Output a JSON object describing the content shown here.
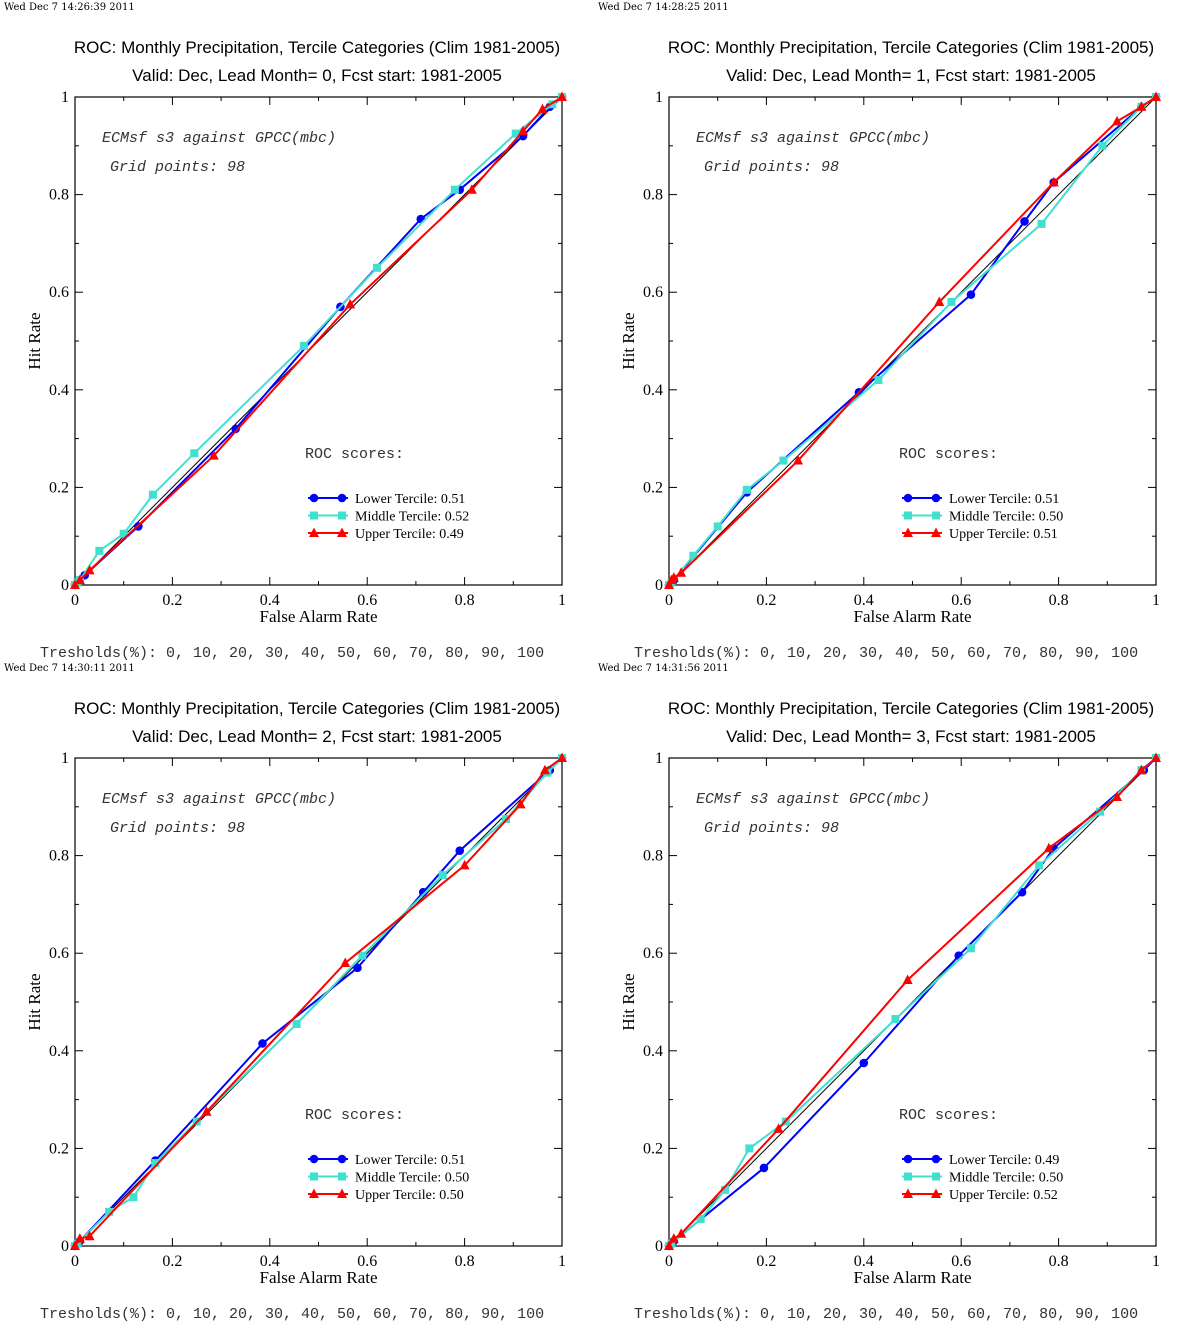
{
  "chart_data": [
    {
      "type": "line",
      "timestamp": "Wed Dec  7 14:26:39 2011",
      "title": "ROC: Monthly Precipitation, Tercile Categories (Clim 1981-2005)",
      "subtitle": "Valid: Dec, Lead Month= 0, Fcst start: 1981-2005",
      "xlabel": "False Alarm Rate",
      "ylabel": "Hit Rate",
      "xlim": [
        0,
        1
      ],
      "ylim": [
        0,
        1
      ],
      "annotation_line1": "ECMsf s3 against GPCC(mbc)",
      "annotation_line2": "Grid points:   98",
      "scores_label": "ROC scores:",
      "thresholds": "Tresholds(%): 0, 10, 20, 30, 40, 50, 60, 70, 80, 90, 100",
      "series": [
        {
          "name": "Lower Tercile: 0.51",
          "color": "#0000ff",
          "marker": "circle",
          "points": [
            [
              0,
              0
            ],
            [
              0.005,
              0.005
            ],
            [
              0.01,
              0.01
            ],
            [
              0.02,
              0.02
            ],
            [
              0.13,
              0.12
            ],
            [
              0.33,
              0.32
            ],
            [
              0.545,
              0.57
            ],
            [
              0.71,
              0.75
            ],
            [
              0.79,
              0.81
            ],
            [
              0.92,
              0.92
            ],
            [
              0.975,
              0.98
            ],
            [
              1,
              1
            ]
          ]
        },
        {
          "name": "Middle Tercile: 0.52",
          "color": "#40e0d0",
          "marker": "square",
          "points": [
            [
              0,
              0
            ],
            [
              0.005,
              0.005
            ],
            [
              0.01,
              0.01
            ],
            [
              0.05,
              0.07
            ],
            [
              0.1,
              0.105
            ],
            [
              0.16,
              0.185
            ],
            [
              0.245,
              0.27
            ],
            [
              0.47,
              0.49
            ],
            [
              0.62,
              0.65
            ],
            [
              0.78,
              0.81
            ],
            [
              0.905,
              0.925
            ],
            [
              0.98,
              0.985
            ],
            [
              1,
              1
            ]
          ]
        },
        {
          "name": "Upper Tercile: 0.49",
          "color": "#ff0000",
          "marker": "triangle",
          "points": [
            [
              0,
              0
            ],
            [
              0.01,
              0.01
            ],
            [
              0.03,
              0.03
            ],
            [
              0.285,
              0.265
            ],
            [
              0.565,
              0.575
            ],
            [
              0.815,
              0.81
            ],
            [
              0.92,
              0.93
            ],
            [
              0.96,
              0.975
            ],
            [
              1,
              1
            ]
          ]
        }
      ]
    },
    {
      "type": "line",
      "timestamp": "Wed Dec  7 14:28:25 2011",
      "title": "ROC: Monthly Precipitation, Tercile Categories (Clim 1981-2005)",
      "subtitle": "Valid: Dec, Lead Month= 1, Fcst start: 1981-2005",
      "xlabel": "False Alarm Rate",
      "ylabel": "Hit Rate",
      "xlim": [
        0,
        1
      ],
      "ylim": [
        0,
        1
      ],
      "annotation_line1": "ECMsf s3 against GPCC(mbc)",
      "annotation_line2": "Grid points:   98",
      "scores_label": "ROC scores:",
      "thresholds": "Tresholds(%): 0, 10, 20, 30, 40, 50, 60, 70, 80, 90, 100",
      "series": [
        {
          "name": "Lower Tercile: 0.51",
          "color": "#0000ff",
          "marker": "circle",
          "points": [
            [
              0,
              0
            ],
            [
              0.005,
              0.005
            ],
            [
              0.01,
              0.01
            ],
            [
              0.16,
              0.19
            ],
            [
              0.39,
              0.395
            ],
            [
              0.62,
              0.595
            ],
            [
              0.73,
              0.745
            ],
            [
              0.79,
              0.825
            ],
            [
              0.97,
              0.98
            ],
            [
              1,
              1
            ]
          ]
        },
        {
          "name": "Middle Tercile: 0.50",
          "color": "#40e0d0",
          "marker": "square",
          "points": [
            [
              0,
              0
            ],
            [
              0.005,
              0.005
            ],
            [
              0.05,
              0.06
            ],
            [
              0.1,
              0.12
            ],
            [
              0.16,
              0.195
            ],
            [
              0.235,
              0.255
            ],
            [
              0.43,
              0.42
            ],
            [
              0.58,
              0.58
            ],
            [
              0.765,
              0.74
            ],
            [
              0.89,
              0.9
            ],
            [
              0.97,
              0.98
            ],
            [
              1,
              1
            ]
          ]
        },
        {
          "name": "Upper Tercile: 0.51",
          "color": "#ff0000",
          "marker": "triangle",
          "points": [
            [
              0,
              0
            ],
            [
              0.005,
              0.01
            ],
            [
              0.01,
              0.015
            ],
            [
              0.025,
              0.025
            ],
            [
              0.265,
              0.255
            ],
            [
              0.555,
              0.58
            ],
            [
              0.79,
              0.825
            ],
            [
              0.92,
              0.95
            ],
            [
              0.97,
              0.98
            ],
            [
              1,
              1
            ]
          ]
        }
      ]
    },
    {
      "type": "line",
      "timestamp": "Wed Dec  7 14:30:11 2011",
      "title": "ROC: Monthly Precipitation, Tercile Categories (Clim 1981-2005)",
      "subtitle": "Valid: Dec, Lead Month= 2, Fcst start: 1981-2005",
      "xlabel": "False Alarm Rate",
      "ylabel": "Hit Rate",
      "xlim": [
        0,
        1
      ],
      "ylim": [
        0,
        1
      ],
      "annotation_line1": "ECMsf s3 against GPCC(mbc)",
      "annotation_line2": "Grid points:   98",
      "scores_label": "ROC scores:",
      "thresholds": "Tresholds(%): 0, 10, 20, 30, 40, 50, 60, 70, 80, 90, 100",
      "series": [
        {
          "name": "Lower Tercile: 0.51",
          "color": "#0000ff",
          "marker": "circle",
          "points": [
            [
              0,
              0
            ],
            [
              0.005,
              0.005
            ],
            [
              0.01,
              0.01
            ],
            [
              0.165,
              0.175
            ],
            [
              0.385,
              0.415
            ],
            [
              0.58,
              0.57
            ],
            [
              0.715,
              0.725
            ],
            [
              0.79,
              0.81
            ],
            [
              0.975,
              0.975
            ],
            [
              1,
              1
            ]
          ]
        },
        {
          "name": "Middle Tercile: 0.50",
          "color": "#40e0d0",
          "marker": "square",
          "points": [
            [
              0,
              0
            ],
            [
              0.005,
              0.005
            ],
            [
              0.07,
              0.07
            ],
            [
              0.12,
              0.1
            ],
            [
              0.165,
              0.17
            ],
            [
              0.25,
              0.255
            ],
            [
              0.455,
              0.455
            ],
            [
              0.59,
              0.595
            ],
            [
              0.755,
              0.76
            ],
            [
              0.885,
              0.875
            ],
            [
              0.97,
              0.97
            ],
            [
              1,
              1
            ]
          ]
        },
        {
          "name": "Upper Tercile: 0.50",
          "color": "#ff0000",
          "marker": "triangle",
          "points": [
            [
              0,
              0
            ],
            [
              0.01,
              0.015
            ],
            [
              0.03,
              0.02
            ],
            [
              0.27,
              0.275
            ],
            [
              0.555,
              0.58
            ],
            [
              0.8,
              0.78
            ],
            [
              0.915,
              0.905
            ],
            [
              0.965,
              0.975
            ],
            [
              1,
              1
            ]
          ]
        }
      ]
    },
    {
      "type": "line",
      "timestamp": "Wed Dec  7 14:31:56 2011",
      "title": "ROC: Monthly Precipitation, Tercile Categories (Clim 1981-2005)",
      "subtitle": "Valid: Dec, Lead Month= 3, Fcst start: 1981-2005",
      "xlabel": "False Alarm Rate",
      "ylabel": "Hit Rate",
      "xlim": [
        0,
        1
      ],
      "ylim": [
        0,
        1
      ],
      "annotation_line1": "ECMsf s3 against GPCC(mbc)",
      "annotation_line2": "Grid points:   98",
      "scores_label": "ROC scores:",
      "thresholds": "Tresholds(%): 0, 10, 20, 30, 40, 50, 60, 70, 80, 90, 100",
      "series": [
        {
          "name": "Lower Tercile: 0.49",
          "color": "#0000ff",
          "marker": "circle",
          "points": [
            [
              0,
              0
            ],
            [
              0.005,
              0.005
            ],
            [
              0.01,
              0.01
            ],
            [
              0.195,
              0.16
            ],
            [
              0.4,
              0.375
            ],
            [
              0.595,
              0.595
            ],
            [
              0.725,
              0.725
            ],
            [
              0.79,
              0.815
            ],
            [
              0.975,
              0.975
            ],
            [
              1,
              1
            ]
          ]
        },
        {
          "name": "Middle Tercile: 0.50",
          "color": "#40e0d0",
          "marker": "square",
          "points": [
            [
              0,
              0
            ],
            [
              0.005,
              0.005
            ],
            [
              0.065,
              0.055
            ],
            [
              0.115,
              0.115
            ],
            [
              0.165,
              0.2
            ],
            [
              0.24,
              0.255
            ],
            [
              0.465,
              0.465
            ],
            [
              0.62,
              0.61
            ],
            [
              0.76,
              0.78
            ],
            [
              0.885,
              0.89
            ],
            [
              0.97,
              0.975
            ],
            [
              1,
              1
            ]
          ]
        },
        {
          "name": "Upper Tercile: 0.52",
          "color": "#ff0000",
          "marker": "triangle",
          "points": [
            [
              0,
              0
            ],
            [
              0.01,
              0.015
            ],
            [
              0.025,
              0.025
            ],
            [
              0.225,
              0.24
            ],
            [
              0.49,
              0.545
            ],
            [
              0.78,
              0.815
            ],
            [
              0.92,
              0.92
            ],
            [
              0.97,
              0.975
            ],
            [
              1,
              1
            ]
          ]
        }
      ]
    }
  ]
}
